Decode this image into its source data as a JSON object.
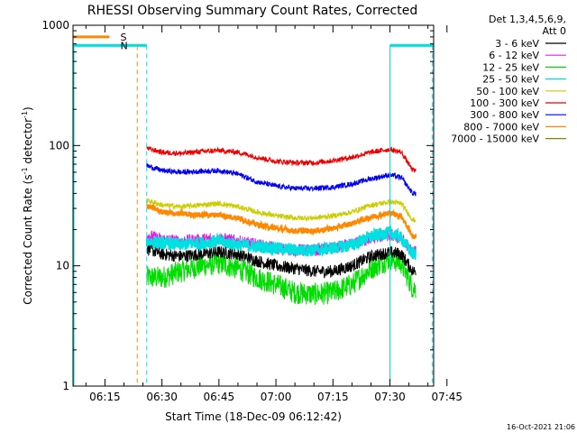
{
  "chart_data": {
    "type": "line",
    "title": "RHESSI Observing Summary Count Rates, Corrected",
    "xlabel": "Start Time (18-Dec-09 06:12:42)",
    "ylabel": "Corrected Count Rate (s⁻¹ detector⁻¹)",
    "ylabel_base": "Corrected Count Rate (s",
    "ylabel_mid": " detector",
    "ylabel_end": ")",
    "ylabel_exp": "-1",
    "yscale": "log",
    "ylim": [
      1,
      1000
    ],
    "xlim_minutes": [
      6.6,
      101.5
    ],
    "y_ticks": [
      {
        "value": 1,
        "label": "1"
      },
      {
        "value": 10,
        "label": "10"
      },
      {
        "value": 100,
        "label": "100"
      },
      {
        "value": 1000,
        "label": "1000"
      }
    ],
    "x_ticks": [
      {
        "minute": 15,
        "label": "06:15"
      },
      {
        "minute": 30,
        "label": "06:30"
      },
      {
        "minute": 45,
        "label": "06:45"
      },
      {
        "minute": 60,
        "label": "07:00"
      },
      {
        "minute": 75,
        "label": "07:15"
      },
      {
        "minute": 90,
        "label": "07:30"
      },
      {
        "minute": 105,
        "label": "07:45"
      }
    ],
    "legend_header": [
      "Det 1,3,4,5,6,9,",
      "Att 0"
    ],
    "legend_position": "right",
    "grid": false,
    "data_window_minutes": [
      26.0,
      96.8
    ],
    "series_x_minutes": [
      26,
      30,
      35,
      40,
      45,
      50,
      55,
      60,
      65,
      70,
      75,
      80,
      85,
      90,
      93,
      96
    ],
    "series": [
      {
        "name": "3 - 6 keV",
        "color": "#000000",
        "values": [
          14,
          12.5,
          12,
          12.5,
          13,
          12.5,
          11,
          10,
          9.5,
          9,
          9,
          10,
          12,
          13,
          12.5,
          9
        ]
      },
      {
        "name": "6 - 12 keV",
        "color": "#e020e0",
        "values": [
          18,
          16.5,
          16,
          16.5,
          17,
          16,
          15,
          14,
          13.5,
          13.5,
          14,
          15,
          17,
          18,
          17,
          13
        ]
      },
      {
        "name": "12 - 25 keV",
        "color": "#00dd00",
        "values": [
          8,
          8,
          9,
          10,
          10.5,
          9.5,
          8,
          7,
          6,
          5.8,
          6,
          7,
          9.5,
          11.5,
          10.5,
          6.5
        ]
      },
      {
        "name": "25 - 50 keV",
        "color": "#00e0e0",
        "values": [
          16,
          15.5,
          15,
          15.5,
          16,
          15,
          14.5,
          14,
          13.5,
          13.5,
          14,
          15,
          17.5,
          19,
          17,
          12.5
        ]
      },
      {
        "name": "50 - 100 keV",
        "color": "#cccc00",
        "values": [
          35,
          32,
          31,
          32,
          33,
          31,
          28,
          26,
          25,
          25,
          26,
          28,
          32,
          34,
          33,
          24
        ]
      },
      {
        "name": "100 - 300 keV",
        "color": "#ee0000",
        "values": [
          95,
          88,
          86,
          89,
          91,
          88,
          80,
          74,
          72,
          72,
          75,
          80,
          88,
          93,
          88,
          62
        ]
      },
      {
        "name": "300 - 800 keV",
        "color": "#0000ee",
        "values": [
          68,
          62,
          60,
          61,
          62,
          58,
          50,
          46,
          44,
          44,
          45,
          48,
          53,
          57,
          54,
          40
        ]
      },
      {
        "name": "800 - 7000 keV",
        "color": "#ff8800",
        "values": [
          32,
          28,
          27,
          26.5,
          26.5,
          25,
          22,
          20.5,
          19.5,
          19.5,
          20.5,
          22.5,
          25.5,
          27.5,
          26,
          17.5
        ]
      },
      {
        "name": "7000 - 15000 keV",
        "color": "#888800",
        "values": []
      }
    ],
    "flags": [
      {
        "label": "S",
        "color": "#ff8800",
        "minute_start": 6.6,
        "minute_end": 16.2,
        "level": 800,
        "boundary_minute": 23.5
      },
      {
        "label": "N",
        "color": "#00e0e0",
        "minute_start": 6.6,
        "minute_end": 16.2,
        "level": 680,
        "boundary_minute": 26.0
      }
    ],
    "night_segments": [
      {
        "minute_start": 6.6,
        "minute_end": 26.0
      },
      {
        "minute_start": 90.0,
        "minute_end": 101.5
      }
    ],
    "night_markers_minutes": [
      26.0,
      90.0,
      101.2
    ],
    "saa_marker_minute": 23.5,
    "timestamp": "16-Oct-2021 21:06"
  }
}
